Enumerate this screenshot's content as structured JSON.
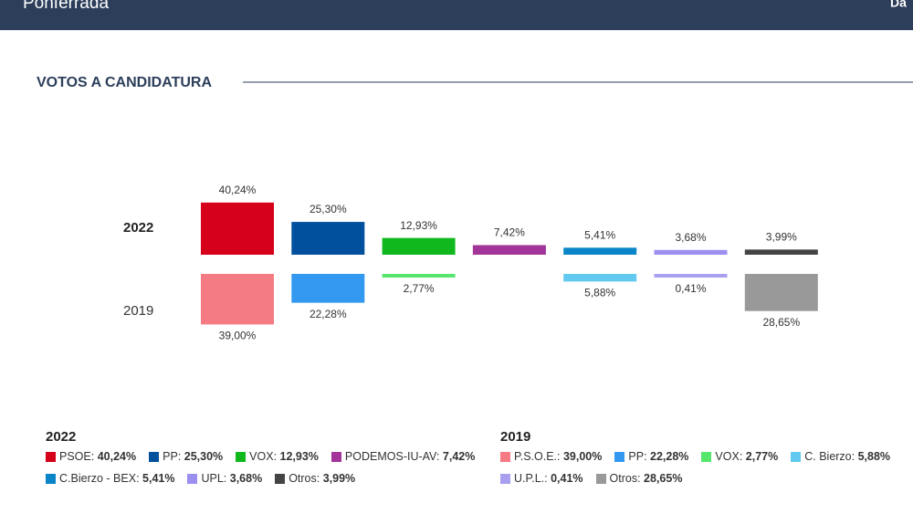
{
  "header": {
    "title": "Ponferrada",
    "right": "Da"
  },
  "chart_data": {
    "type": "bar",
    "title": "VOTOS A CANDIDATURA",
    "categories": [
      null,
      null,
      null,
      null,
      null,
      null,
      null
    ],
    "series": [
      {
        "name": "2022",
        "parties": [
          "PSOE",
          "PP",
          "VOX",
          "PODEMOS-IU-AV",
          "C.Bierzo - BEX",
          "UPL",
          "Otros"
        ],
        "values": [
          40.24,
          25.3,
          12.93,
          7.42,
          5.41,
          3.68,
          3.99
        ],
        "value_labels": [
          "40,24%",
          "25,30%",
          "12,93%",
          "7,42%",
          "5,41%",
          "3,68%",
          "3,99%"
        ],
        "colors": [
          "#d7001a",
          "#00509e",
          "#10b81d",
          "#a3359a",
          "#0a85c8",
          "#9b8ff0",
          "#444444"
        ]
      },
      {
        "name": "2019",
        "parties": [
          "P.S.O.E.",
          "PP",
          "VOX",
          null,
          "C. Bierzo",
          "U.P.L.",
          "Otros"
        ],
        "values": [
          39.0,
          22.28,
          2.77,
          null,
          5.88,
          0.41,
          28.65
        ],
        "value_labels": [
          "39,00%",
          "22,28%",
          "2,77%",
          null,
          "5,88%",
          "0,41%",
          "28,65%"
        ],
        "colors": [
          "#f47b84",
          "#3399f0",
          "#57e66d",
          null,
          "#62c9f0",
          "#a99ff0",
          "#999999"
        ]
      }
    ]
  }
}
